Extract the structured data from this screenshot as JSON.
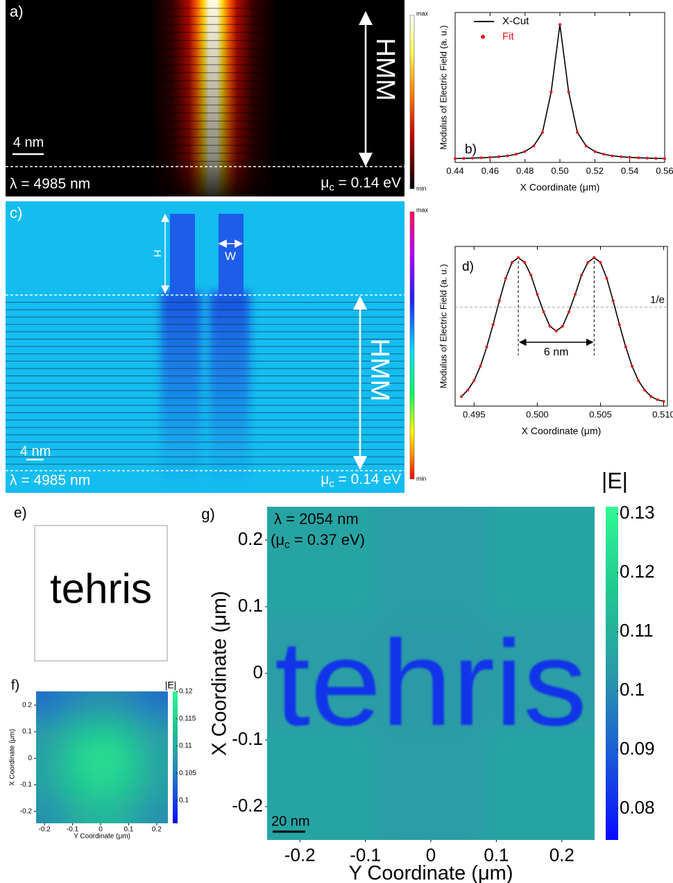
{
  "chart_data": [
    {
      "type": "field-map",
      "panel": "a)",
      "region_label": "HMM",
      "scale_bar": "4 nm",
      "wavelength": "λ = 4985 nm",
      "chemical_potential": [
        "μ",
        "c",
        " = 0.14 eV"
      ],
      "colorbar_labels": [
        "max",
        "min"
      ]
    },
    {
      "type": "line",
      "panel": "b)",
      "x_label": "X Coordinate (μm)",
      "y_label": "Modulus of Electric Field (a. u.)",
      "x": [
        0.44,
        0.445,
        0.45,
        0.455,
        0.46,
        0.465,
        0.47,
        0.475,
        0.48,
        0.485,
        0.49,
        0.495,
        0.5,
        0.505,
        0.51,
        0.515,
        0.52,
        0.525,
        0.53,
        0.535,
        0.54,
        0.545,
        0.55,
        0.555,
        0.56
      ],
      "series": [
        {
          "name": "X-Cut",
          "color": "#000000",
          "style": "line",
          "values": [
            0.026,
            0.027,
            0.029,
            0.031,
            0.034,
            0.038,
            0.044,
            0.055,
            0.073,
            0.11,
            0.2,
            0.47,
            0.92,
            0.47,
            0.2,
            0.11,
            0.073,
            0.055,
            0.044,
            0.038,
            0.034,
            0.031,
            0.029,
            0.027,
            0.026
          ]
        },
        {
          "name": "Fit",
          "color": "#e8161b",
          "style": "markers",
          "values": [
            0.026,
            0.027,
            0.029,
            0.031,
            0.034,
            0.038,
            0.044,
            0.055,
            0.073,
            0.11,
            0.2,
            0.47,
            0.92,
            0.47,
            0.2,
            0.11,
            0.073,
            0.055,
            0.044,
            0.038,
            0.034,
            0.031,
            0.029,
            0.027,
            0.026
          ]
        }
      ],
      "xlim": [
        0.44,
        0.56
      ],
      "ylim": [
        0,
        1
      ],
      "xticks": [
        0.44,
        0.46,
        0.48,
        {
          "value": 0.5,
          "label": "0.50"
        },
        0.52,
        0.54,
        0.56
      ],
      "legend": "upper left"
    },
    {
      "type": "field-map",
      "panel": "c)",
      "region_label": "HMM",
      "height_label": "H",
      "width_label": "W",
      "scale_bar": "4 nm",
      "wavelength": "λ = 4985 nm",
      "chemical_potential": [
        "μ",
        "c",
        " = 0.14 eV"
      ],
      "colorbar_labels": [
        "max",
        "min"
      ]
    },
    {
      "type": "line",
      "panel": "d)",
      "x_label": "X Coordinate (μm)",
      "y_label": "Modulus of Electric Field (a. u.)",
      "x": [
        0.494,
        0.4945,
        0.495,
        0.4955,
        0.496,
        0.4965,
        0.497,
        0.4975,
        0.498,
        0.4985,
        0.499,
        0.4995,
        0.5,
        0.5005,
        0.501,
        0.5015,
        0.502,
        0.5025,
        0.503,
        0.5035,
        0.504,
        0.5045,
        0.505,
        0.5055,
        0.506,
        0.5065,
        0.507,
        0.5075,
        0.508,
        0.5085,
        0.509,
        0.5095,
        0.51
      ],
      "series": [
        {
          "color": "#000000",
          "style": "line",
          "values": [
            0.06,
            0.1,
            0.16,
            0.25,
            0.37,
            0.51,
            0.66,
            0.8,
            0.9,
            0.93,
            0.9,
            0.82,
            0.7,
            0.59,
            0.5,
            0.47,
            0.5,
            0.59,
            0.7,
            0.82,
            0.9,
            0.93,
            0.9,
            0.8,
            0.66,
            0.51,
            0.37,
            0.25,
            0.16,
            0.1,
            0.06,
            0.04,
            0.03
          ]
        },
        {
          "color": "#e8161b",
          "style": "markers",
          "values": [
            0.06,
            0.1,
            0.16,
            0.25,
            0.37,
            0.51,
            0.66,
            0.8,
            0.9,
            0.93,
            0.9,
            0.82,
            0.7,
            0.59,
            0.5,
            0.47,
            0.5,
            0.59,
            0.7,
            0.82,
            0.9,
            0.93,
            0.9,
            0.8,
            0.66,
            0.51,
            0.37,
            0.25,
            0.16,
            0.1,
            0.06,
            0.04,
            0.03
          ]
        }
      ],
      "xlim": [
        0.4935,
        0.5103
      ],
      "ylim": [
        0,
        1
      ],
      "xticks": [
        0.495,
        {
          "value": 0.5,
          "label": "0.500"
        },
        0.505,
        {
          "value": 0.51,
          "label": "0.510"
        }
      ],
      "reference_line": {
        "value": 0.62,
        "label": "1/e"
      },
      "peak_x": [
        0.4985,
        0.5045
      ],
      "peak_separation": "6 nm"
    },
    {
      "type": "image",
      "panel": "e)",
      "logo": "tehris"
    },
    {
      "type": "heatmap",
      "panel": "f)",
      "colorbar_title": "|E|",
      "x_label": "Y Coordinate (μm)",
      "y_label": "X Coordinate (μm)",
      "xlim": [
        -0.23,
        0.24
      ],
      "ylim": [
        -0.245,
        0.252
      ],
      "xticks": [
        -0.2,
        -0.1,
        0,
        0.1,
        0.2
      ],
      "yticks": [
        -0.2,
        -0.1,
        0,
        0.1,
        0.2
      ],
      "clim": [
        0.0958,
        0.12
      ],
      "cticks": [
        0.1,
        0.105,
        0.11,
        0.115,
        0.12
      ],
      "colormap": [
        "#0a0aff",
        "#1a5ad8",
        "#2a9aa8",
        "#20c890",
        "#30f895"
      ],
      "z": [
        [
          0.104,
          0.106,
          0.107,
          0.106,
          0.104
        ],
        [
          0.108,
          0.112,
          0.114,
          0.112,
          0.108
        ],
        [
          0.109,
          0.115,
          0.118,
          0.115,
          0.109
        ],
        [
          0.109,
          0.114,
          0.116,
          0.114,
          0.109
        ],
        [
          0.107,
          0.11,
          0.112,
          0.11,
          0.107
        ]
      ]
    },
    {
      "type": "heatmap",
      "panel": "g)",
      "colorbar_title": "|E|",
      "x_label": "Y Coordinate (μm)",
      "y_label": "X Coordinate (μm)",
      "wavelength": "λ = 2054 nm",
      "chemical_potential": [
        "(μ",
        "c",
        " = 0.37 eV)"
      ],
      "scale_bar": "20 nm",
      "xlim": [
        -0.25,
        0.25
      ],
      "ylim": [
        -0.25,
        0.25
      ],
      "xticks": [
        -0.2,
        -0.1,
        0,
        0.1,
        0.2
      ],
      "yticks": [
        -0.2,
        -0.1,
        0,
        0.1,
        0.2
      ],
      "clim": [
        0.0747,
        0.1312
      ],
      "cticks": [
        0.08,
        0.09,
        0.1,
        0.11,
        0.12,
        0.13
      ],
      "colormap": [
        "#0a0aff",
        "#1a5ad8",
        "#2a9aa8",
        "#20c890",
        "#30f895"
      ],
      "z": [
        [
          0.106,
          0.104,
          0.106
        ],
        [
          0.104,
          0.103,
          0.104
        ],
        [
          0.106,
          0.104,
          0.106
        ]
      ],
      "pattern_value": 0.08
    }
  ]
}
